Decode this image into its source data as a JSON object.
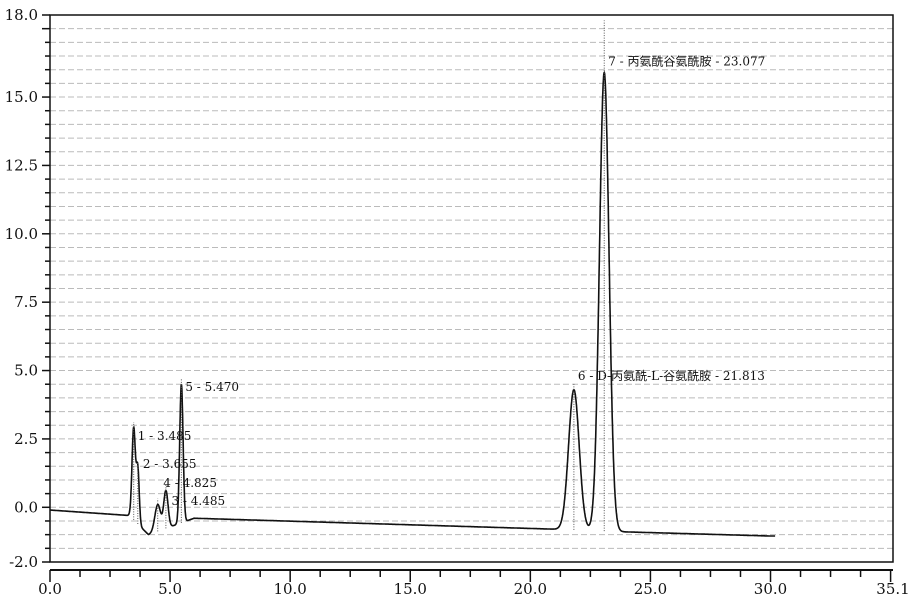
{
  "chart_data": {
    "type": "line",
    "title": "",
    "xlabel": "",
    "ylabel": "",
    "xlim": [
      0.0,
      35.1
    ],
    "ylim": [
      -2.0,
      18.0
    ],
    "x_ticks": [
      "0.0",
      "5.0",
      "10.0",
      "15.0",
      "20.0",
      "25.0",
      "30.0",
      "35.1"
    ],
    "x_tick_values": [
      0,
      5,
      10,
      15,
      20,
      25,
      30,
      35.1
    ],
    "y_ticks": [
      "-2.0",
      "0.0",
      "2.5",
      "5.0",
      "7.5",
      "10.0",
      "12.5",
      "15.0",
      "18.0"
    ],
    "y_tick_values": [
      -2,
      0,
      2.5,
      5,
      7.5,
      10,
      12.5,
      15,
      18
    ],
    "grid": "horizontal dashed, every 0.5",
    "line_color": "#111111",
    "baseline": {
      "x": [
        0,
        3.3,
        4.1,
        6.0,
        21.0,
        24.0,
        30.0
      ],
      "y": [
        -0.1,
        -0.3,
        -1.0,
        -0.4,
        -0.8,
        -0.9,
        -1.05
      ]
    },
    "peaks": [
      {
        "label": "1 - 3.485",
        "rt": 3.485,
        "apex": 2.9
      },
      {
        "label": "2 - 3.655",
        "rt": 3.655,
        "apex": 1.4
      },
      {
        "label": "3 - 4.485",
        "rt": 4.485,
        "apex": 0.1
      },
      {
        "label": "4 - 4.825",
        "rt": 4.825,
        "apex": 0.6
      },
      {
        "label": "5 - 5.470",
        "rt": 5.47,
        "apex": 4.5
      },
      {
        "label": "6 - D-丙氨酰-L-谷氨酰胺 - 21.813",
        "rt": 21.813,
        "apex": 4.3
      },
      {
        "label": "7 - 丙氨酰谷氨酰胺 - 23.077",
        "rt": 23.077,
        "apex": 15.9
      }
    ]
  }
}
